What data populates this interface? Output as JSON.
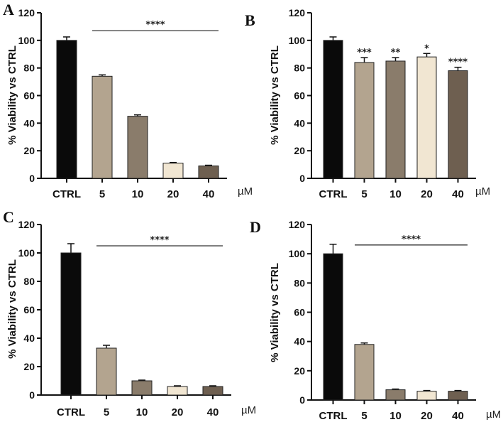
{
  "figure": {
    "title": ""
  },
  "chart_data": [
    {
      "panel": "A",
      "type": "bar",
      "categories": [
        "CTRL",
        "5",
        "10",
        "20",
        "40"
      ],
      "values": [
        100,
        74,
        45,
        11,
        9
      ],
      "errors": [
        2.5,
        1,
        1,
        0.5,
        0.5
      ],
      "colors": [
        "#0a0a0a",
        "#b3a48f",
        "#8a7c6b",
        "#f1e6d2",
        "#6e5f50"
      ],
      "ylabel": "% Viability vs CTRL",
      "unit": "µM",
      "ylim": [
        0,
        120
      ],
      "yticks": [
        0,
        20,
        40,
        60,
        80,
        100,
        120
      ],
      "significance": {
        "label": "****",
        "from": 1,
        "to": 4,
        "y": 107
      }
    },
    {
      "panel": "B",
      "type": "bar",
      "categories": [
        "CTRL",
        "5",
        "10",
        "20",
        "40"
      ],
      "values": [
        100,
        84,
        85,
        88,
        78
      ],
      "errors": [
        2.5,
        3.5,
        2.5,
        2.5,
        2.5
      ],
      "colors": [
        "#0a0a0a",
        "#b3a48f",
        "#8a7c6b",
        "#f1e6d2",
        "#6e5f50"
      ],
      "ylabel": "% Viability vs CTRL",
      "unit": "µM",
      "ylim": [
        0,
        120
      ],
      "yticks": [
        0,
        20,
        40,
        60,
        80,
        100,
        120
      ],
      "bar_annotations": [
        "",
        "***",
        "**",
        "*",
        "****"
      ]
    },
    {
      "panel": "C",
      "type": "bar",
      "categories": [
        "CTRL",
        "5",
        "10",
        "20",
        "40"
      ],
      "values": [
        100,
        33,
        10,
        6,
        6
      ],
      "errors": [
        6.5,
        2,
        0.5,
        0.5,
        0.5
      ],
      "colors": [
        "#0a0a0a",
        "#b3a48f",
        "#8a7c6b",
        "#f1e6d2",
        "#6e5f50"
      ],
      "ylabel": "% Viability vs CTRL",
      "unit": "µM",
      "ylim": [
        0,
        120
      ],
      "yticks": [
        0,
        20,
        40,
        60,
        80,
        100,
        120
      ],
      "significance": {
        "label": "****",
        "from": 1,
        "to": 4,
        "y": 105
      }
    },
    {
      "panel": "D",
      "type": "bar",
      "categories": [
        "CTRL",
        "5",
        "10",
        "20",
        "40"
      ],
      "values": [
        100,
        38,
        7,
        6,
        6
      ],
      "errors": [
        6.5,
        1,
        0.5,
        0.5,
        0.5
      ],
      "colors": [
        "#0a0a0a",
        "#b3a48f",
        "#8a7c6b",
        "#f1e6d2",
        "#6e5f50"
      ],
      "ylabel": "% Viability vs CTRL",
      "unit": "µM",
      "ylim": [
        0,
        120
      ],
      "yticks": [
        0,
        20,
        40,
        60,
        80,
        100,
        120
      ],
      "significance": {
        "label": "****",
        "from": 1,
        "to": 4,
        "y": 106
      }
    }
  ]
}
